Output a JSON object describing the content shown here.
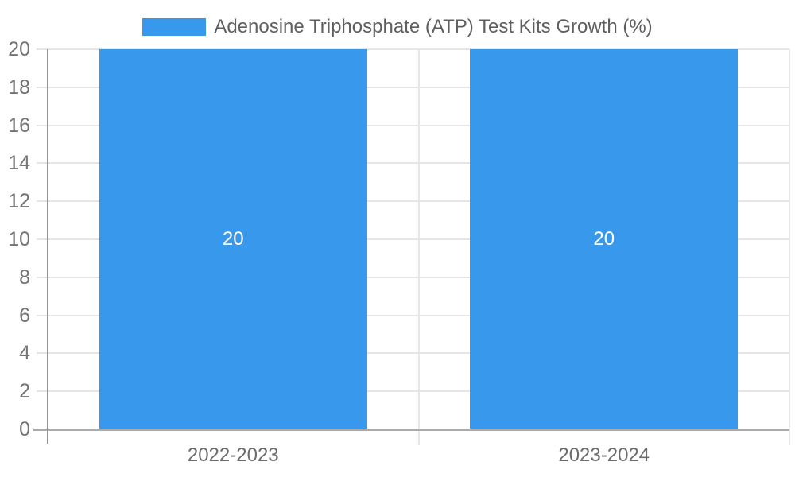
{
  "chart_data": {
    "type": "bar",
    "title": "Adenosine Triphosphate (ATP) Test Kits Growth (%)",
    "legend": [
      "Adenosine Triphosphate (ATP) Test Kits Growth (%)"
    ],
    "legend_position": "top",
    "categories": [
      "2022-2023",
      "2023-2024"
    ],
    "values": [
      20,
      20
    ],
    "bar_labels": [
      "20",
      "20"
    ],
    "xlabel": "",
    "ylabel": "",
    "ylim": [
      0,
      20
    ],
    "yticks": [
      0,
      2,
      4,
      6,
      8,
      10,
      12,
      14,
      16,
      18,
      20
    ],
    "grid": true,
    "colors": {
      "bar": "#3898EC",
      "grid_line": "#e6e6e6",
      "x_axis_line": "#ababab",
      "y_axis_line": "#949494",
      "y_tick_text": "#737373",
      "x_tick_text": "#6b6b6b",
      "legend_text": "#5f5f5f",
      "bar_label_text": "#ffffff",
      "background": "#ffffff"
    }
  }
}
